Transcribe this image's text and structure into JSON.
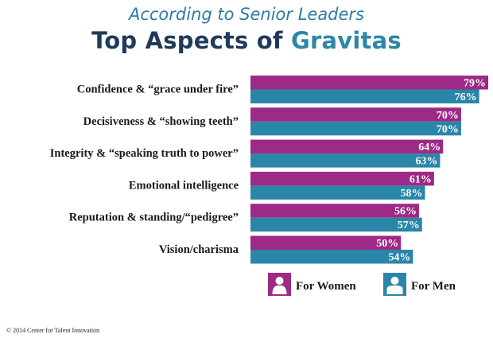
{
  "title_line1": "According to Senior Leaders",
  "title_part1": "Top Aspects of ",
  "title_part2": "Gravitas",
  "copyright": "© 2014 Center for Talent Innovation",
  "colors": {
    "women": "#9c2a86",
    "men": "#2a86a8"
  },
  "chart_data": {
    "type": "bar",
    "orientation": "horizontal",
    "categories": [
      "Confidence & “grace under fire”",
      "Decisiveness & “showing teeth”",
      "Integrity & “speaking truth to power”",
      "Emotional intelligence",
      "Reputation & standing/“pedigree”",
      "Vision/charisma"
    ],
    "series": [
      {
        "name": "For Women",
        "values": [
          79,
          70,
          64,
          61,
          56,
          50
        ],
        "labels": [
          "79%",
          "70%",
          "64%",
          "61%",
          "56%",
          "50%"
        ]
      },
      {
        "name": "For Men",
        "values": [
          76,
          70,
          63,
          58,
          57,
          54
        ],
        "labels": [
          "76%",
          "70%",
          "63%",
          "58%",
          "57%",
          "54%"
        ]
      }
    ],
    "xlim": [
      0,
      79
    ],
    "grid": false,
    "legend_position": "bottom-right"
  }
}
